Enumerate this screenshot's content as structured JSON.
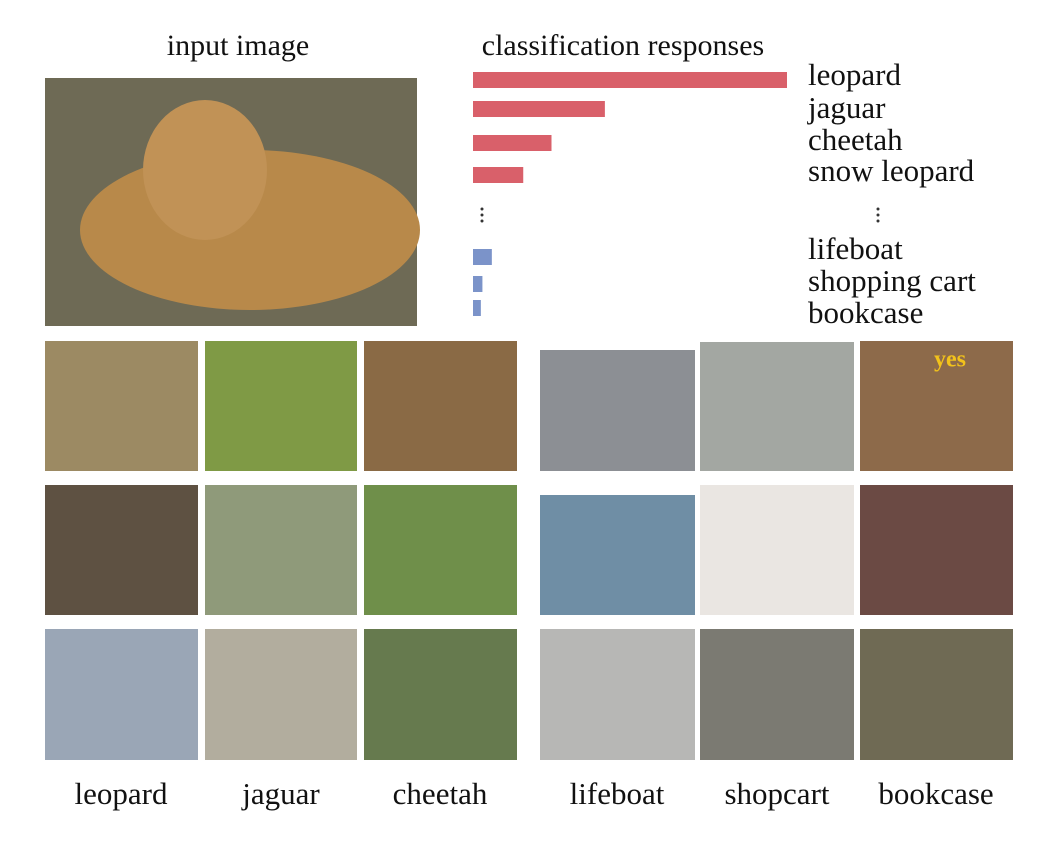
{
  "headings": {
    "input": "input image",
    "responses": "classification responses"
  },
  "chart_data": {
    "type": "bar",
    "orientation": "horizontal",
    "categories": [
      "leopard",
      "jaguar",
      "cheetah",
      "snow leopard",
      "lifeboat",
      "shopping cart",
      "bookcase"
    ],
    "values": [
      1.0,
      0.42,
      0.25,
      0.16,
      0.06,
      0.03,
      0.025
    ],
    "colors": [
      "#d9606a",
      "#d9606a",
      "#d9606a",
      "#d9606a",
      "#7b93c9",
      "#7b93c9",
      "#7b93c9"
    ]
  },
  "examples": {
    "labels": [
      "leopard",
      "jaguar",
      "cheetah",
      "lifeboat",
      "shopcart",
      "bookcase"
    ],
    "image_text": "yes"
  }
}
